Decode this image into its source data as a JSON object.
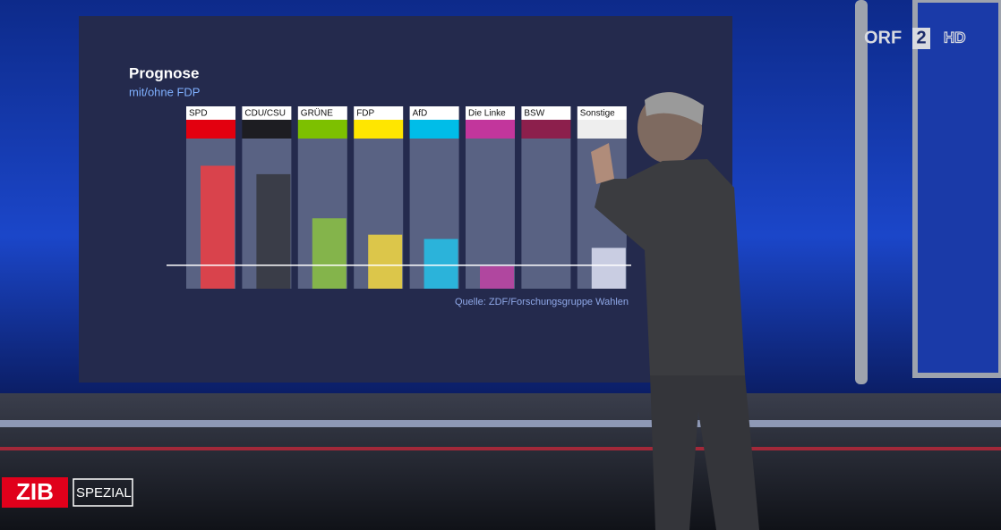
{
  "chart_data": {
    "type": "bar",
    "title": "Prognose",
    "subtitle": "mit/ohne FDP",
    "source": "Quelle: ZDF/Forschungsgruppe Wahlen",
    "categories": [
      "SPD",
      "CDU/CSU",
      "GRÜNE",
      "FDP",
      "AfD",
      "Die Linke",
      "BSW",
      "Sonstige"
    ],
    "header_colors": [
      "#e3000f",
      "#1d1d22",
      "#7dc000",
      "#ffe600",
      "#00bde8",
      "#c2369c",
      "#8c1f4c",
      "#eeeeee"
    ],
    "colors": [
      "#d9434c",
      "#3a3d48",
      "#84b44b",
      "#dcc64a",
      "#2bb3da",
      "#b0479f",
      "#8c1f4c",
      "#c9cde2"
    ],
    "values": [
      26.2,
      24.4,
      15,
      11.5,
      10.6,
      4.8,
      0,
      8.7
    ],
    "ylim": [
      0,
      32
    ],
    "threshold": 5
  },
  "broadcast": {
    "channel": "ORF",
    "channel_number": "2",
    "quality": "HD",
    "show": "ZIB",
    "show_suffix": "SPEZIAL"
  }
}
